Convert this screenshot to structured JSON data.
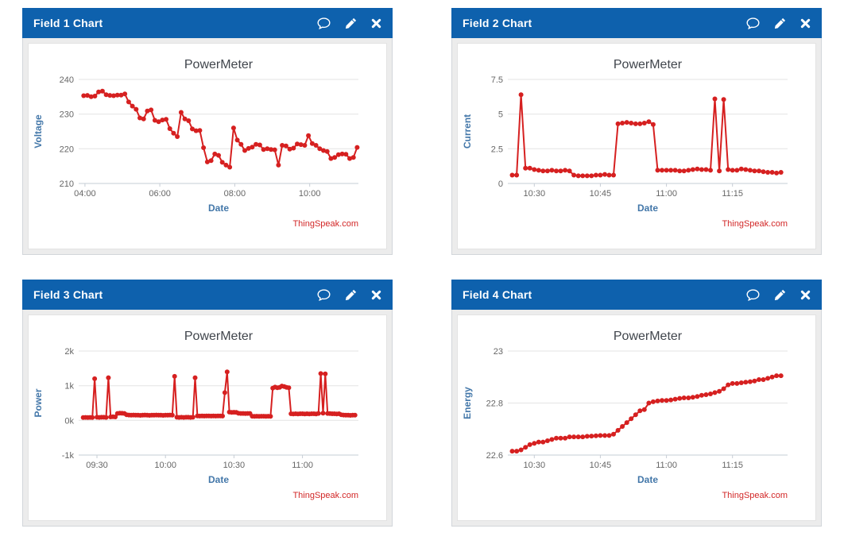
{
  "theme": {
    "header_bg": "#0e61ad",
    "header_text": "#ffffff",
    "panel_body_bg": "#ececec",
    "series_red": "#d62020",
    "credit_color": "#d22727",
    "title_color": "#40454c",
    "axis_title_color": "#4377a9",
    "tick_label_color": "#666666",
    "grid_color": "#e3e3e3",
    "axis_color": "#c6cdd5"
  },
  "panels": [
    {
      "title": "Field 1 Chart",
      "icons": [
        "comment-icon",
        "edit-icon",
        "close-icon"
      ]
    },
    {
      "title": "Field 2 Chart",
      "icons": [
        "comment-icon",
        "edit-icon",
        "close-icon"
      ]
    },
    {
      "title": "Field 3 Chart",
      "icons": [
        "comment-icon",
        "edit-icon",
        "close-icon"
      ]
    },
    {
      "title": "Field 4 Chart",
      "icons": [
        "comment-icon",
        "edit-icon",
        "close-icon"
      ]
    }
  ],
  "chart_data": [
    {
      "type": "line",
      "title": "PowerMeter",
      "xlabel": "Date",
      "ylabel": "Voltage",
      "credit": "ThingSpeak.com",
      "color": "#d62020",
      "legend": "none",
      "grid": "horizontal",
      "x_domain": [
        230,
        678
      ],
      "x_start_min": 238,
      "x_step_min": 6,
      "xticks": [
        {
          "label": "04:00",
          "v": 240
        },
        {
          "label": "06:00",
          "v": 360
        },
        {
          "label": "08:00",
          "v": 480
        },
        {
          "label": "10:00",
          "v": 600
        }
      ],
      "ylim": [
        210,
        240
      ],
      "yticks": [
        {
          "label": "210",
          "v": 210
        },
        {
          "label": "220",
          "v": 220
        },
        {
          "label": "230",
          "v": 230
        },
        {
          "label": "240",
          "v": 240
        }
      ],
      "values": [
        235.3,
        235.4,
        235.0,
        235.2,
        236.4,
        236.6,
        235.6,
        235.4,
        235.3,
        235.5,
        235.5,
        235.8,
        233.5,
        232.3,
        231.4,
        228.9,
        228.6,
        230.9,
        231.2,
        228.2,
        227.8,
        228.3,
        228.5,
        225.8,
        224.5,
        223.5,
        230.5,
        228.6,
        228.1,
        225.7,
        225.2,
        225.3,
        220.3,
        216.2,
        216.6,
        218.5,
        218.1,
        216.1,
        215.3,
        214.7,
        226.0,
        222.5,
        221.3,
        219.5,
        220.1,
        220.5,
        221.3,
        221.1,
        219.8,
        220.0,
        219.8,
        219.7,
        215.3,
        221.0,
        220.8,
        219.9,
        220.2,
        221.4,
        221.2,
        221.0,
        223.8,
        221.5,
        221.0,
        220.0,
        219.5,
        219.2,
        217.2,
        217.5,
        218.3,
        218.5,
        218.4,
        217.2,
        217.5,
        220.4
      ]
    },
    {
      "type": "line",
      "title": "PowerMeter",
      "xlabel": "Date",
      "ylabel": "Current",
      "credit": "ThingSpeak.com",
      "color": "#d62020",
      "legend": "none",
      "grid": "horizontal",
      "x_domain": [
        624,
        687.5
      ],
      "x_start_min": 625,
      "x_step_min": 1,
      "xticks": [
        {
          "label": "10:30",
          "v": 630
        },
        {
          "label": "10:45",
          "v": 645
        },
        {
          "label": "11:00",
          "v": 660
        },
        {
          "label": "11:15",
          "v": 675
        }
      ],
      "ylim": [
        0,
        7.5
      ],
      "yticks": [
        {
          "label": "0",
          "v": 0
        },
        {
          "label": "2.5",
          "v": 2.5
        },
        {
          "label": "5",
          "v": 5
        },
        {
          "label": "7.5",
          "v": 7.5
        }
      ],
      "values": [
        0.6,
        0.6,
        6.4,
        1.1,
        1.1,
        1.0,
        0.95,
        0.9,
        0.9,
        0.95,
        0.9,
        0.9,
        0.95,
        0.9,
        0.6,
        0.55,
        0.55,
        0.55,
        0.55,
        0.6,
        0.6,
        0.65,
        0.6,
        0.6,
        4.3,
        4.35,
        4.4,
        4.35,
        4.3,
        4.3,
        4.35,
        4.45,
        4.25,
        0.95,
        0.95,
        0.95,
        0.95,
        0.95,
        0.9,
        0.9,
        0.95,
        1.0,
        1.05,
        1.0,
        1.0,
        0.95,
        6.1,
        0.9,
        6.05,
        1.0,
        0.95,
        0.95,
        1.05,
        1.0,
        0.95,
        0.9,
        0.9,
        0.85,
        0.8,
        0.8,
        0.75,
        0.8
      ]
    },
    {
      "type": "line",
      "title": "PowerMeter",
      "xlabel": "Date",
      "ylabel": "Power",
      "credit": "ThingSpeak.com",
      "color": "#d62020",
      "legend": "none",
      "grid": "horizontal",
      "x_domain": [
        562,
        684.5
      ],
      "x_start_min": 564,
      "x_step_min": 1,
      "xticks": [
        {
          "label": "09:30",
          "v": 570
        },
        {
          "label": "10:00",
          "v": 600
        },
        {
          "label": "10:30",
          "v": 630
        },
        {
          "label": "11:00",
          "v": 660
        }
      ],
      "ylim": [
        -1000,
        2000
      ],
      "yticks": [
        {
          "label": "-1k",
          "v": -1000
        },
        {
          "label": "0k",
          "v": 0
        },
        {
          "label": "1k",
          "v": 1000
        },
        {
          "label": "2k",
          "v": 2000
        }
      ],
      "values": [
        80,
        85,
        80,
        85,
        80,
        1200,
        90,
        85,
        90,
        90,
        85,
        1230,
        100,
        105,
        100,
        200,
        210,
        205,
        200,
        160,
        155,
        150,
        155,
        150,
        150,
        145,
        150,
        155,
        150,
        145,
        150,
        150,
        155,
        150,
        150,
        145,
        150,
        150,
        155,
        150,
        1270,
        90,
        85,
        90,
        85,
        90,
        90,
        85,
        90,
        1230,
        130,
        125,
        130,
        125,
        130,
        130,
        125,
        130,
        125,
        130,
        130,
        125,
        800,
        1400,
        240,
        230,
        235,
        230,
        205,
        200,
        200,
        195,
        200,
        200,
        120,
        115,
        120,
        115,
        120,
        120,
        115,
        120,
        115,
        930,
        960,
        940,
        950,
        990,
        975,
        950,
        940,
        190,
        185,
        190,
        185,
        190,
        190,
        185,
        190,
        185,
        190,
        190,
        185,
        200,
        1350,
        210,
        1340,
        200,
        195,
        190,
        190,
        185,
        190,
        160,
        155,
        150,
        150,
        145,
        150,
        150
      ]
    },
    {
      "type": "line",
      "title": "PowerMeter",
      "xlabel": "Date",
      "ylabel": "Energy",
      "credit": "ThingSpeak.com",
      "color": "#d62020",
      "legend": "none",
      "grid": "horizontal",
      "x_domain": [
        624,
        687.5
      ],
      "x_start_min": 625,
      "x_step_min": 1,
      "xticks": [
        {
          "label": "10:30",
          "v": 630
        },
        {
          "label": "10:45",
          "v": 645
        },
        {
          "label": "11:00",
          "v": 660
        },
        {
          "label": "11:15",
          "v": 675
        }
      ],
      "ylim": [
        22.6,
        23.0
      ],
      "yticks": [
        {
          "label": "22.6",
          "v": 22.6
        },
        {
          "label": "22.8",
          "v": 22.8
        },
        {
          "label": "23",
          "v": 23.0
        }
      ],
      "values": [
        22.615,
        22.615,
        22.62,
        22.63,
        22.64,
        22.645,
        22.65,
        22.65,
        22.655,
        22.66,
        22.665,
        22.665,
        22.665,
        22.67,
        22.67,
        22.67,
        22.67,
        22.672,
        22.673,
        22.674,
        22.675,
        22.675,
        22.675,
        22.68,
        22.695,
        22.71,
        22.725,
        22.74,
        22.755,
        22.77,
        22.775,
        22.8,
        22.805,
        22.808,
        22.81,
        22.81,
        22.812,
        22.815,
        22.818,
        22.82,
        22.82,
        22.822,
        22.825,
        22.83,
        22.832,
        22.835,
        22.84,
        22.845,
        22.855,
        22.87,
        22.875,
        22.875,
        22.878,
        22.88,
        22.882,
        22.885,
        22.89,
        22.89,
        22.895,
        22.9,
        22.905,
        22.905
      ]
    }
  ]
}
